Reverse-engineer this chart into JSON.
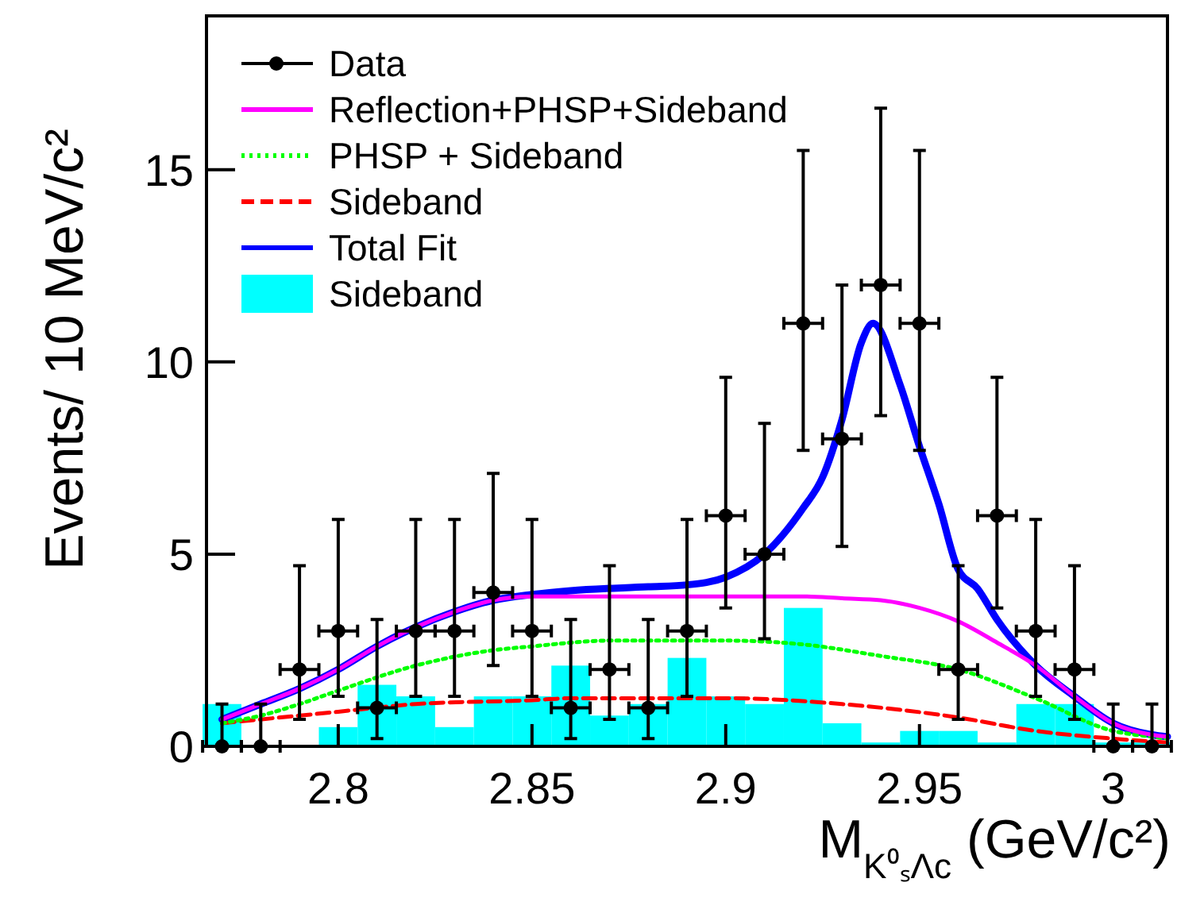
{
  "chart_data": {
    "type": "line",
    "xlabel": "M$_{K⁰ₛΛc}$ (GeV/c²)",
    "ylabel": "Events/ 10 MeV/c²",
    "xlim": [
      2.766,
      3.014
    ],
    "ylim": [
      0,
      19
    ],
    "xticks": [
      2.8,
      2.85,
      2.9,
      2.95,
      3
    ],
    "yticks": [
      0,
      5,
      10,
      15
    ],
    "legend": "top left",
    "grid": false,
    "series": [
      {
        "name": "Data",
        "type": "scatter",
        "marker": "circle",
        "color": "#000000",
        "x": [
          2.77,
          2.78,
          2.79,
          2.8,
          2.81,
          2.82,
          2.83,
          2.84,
          2.85,
          2.86,
          2.87,
          2.88,
          2.89,
          2.9,
          2.91,
          2.92,
          2.93,
          2.94,
          2.95,
          2.96,
          2.97,
          2.98,
          2.99,
          3.0,
          3.01
        ],
        "values": [
          0,
          0,
          2,
          3,
          1,
          3,
          3,
          4,
          3,
          1,
          2,
          1,
          3,
          6,
          5,
          11,
          8,
          12,
          11,
          2,
          6,
          3,
          2,
          0,
          0
        ],
        "errors": [
          [
            0,
            1.1
          ],
          [
            0,
            1.1
          ],
          [
            0.7,
            4.7
          ],
          [
            1.3,
            5.9
          ],
          [
            0.2,
            3.3
          ],
          [
            1.3,
            5.9
          ],
          [
            1.3,
            5.9
          ],
          [
            2.1,
            7.1
          ],
          [
            1.3,
            5.9
          ],
          [
            0.2,
            3.3
          ],
          [
            0.7,
            4.7
          ],
          [
            0.2,
            3.3
          ],
          [
            1.3,
            5.9
          ],
          [
            3.6,
            9.6
          ],
          [
            2.8,
            8.4
          ],
          [
            7.7,
            15.5
          ],
          [
            5.2,
            12.0
          ],
          [
            8.6,
            16.6
          ],
          [
            7.7,
            15.5
          ],
          [
            0.7,
            4.7
          ],
          [
            3.6,
            9.6
          ],
          [
            1.3,
            5.9
          ],
          [
            0.7,
            4.7
          ],
          [
            0,
            1.1
          ],
          [
            0,
            1.1
          ]
        ],
        "xerrors": [
          0.005,
          0.005,
          0.005,
          0.005,
          0.005,
          0.005,
          0.005,
          0.005,
          0.005,
          0.005,
          0.005,
          0.005,
          0.005,
          0.005,
          0.005,
          0.005,
          0.005,
          0.005,
          0.005,
          0.005,
          0.005,
          0.005,
          0.005,
          0.005,
          0.005
        ]
      },
      {
        "name": "Reflection+PHSP+Sideband",
        "line_style": "solid",
        "color": "#ff00ff",
        "x": [
          2.77,
          2.78,
          2.79,
          2.8,
          2.81,
          2.82,
          2.83,
          2.84,
          2.85,
          2.86,
          2.88,
          2.9,
          2.92,
          2.93,
          2.94,
          2.95,
          2.96,
          2.97,
          2.98,
          2.99,
          3.0,
          3.01,
          3.014
        ],
        "values": [
          0.7,
          1.1,
          1.5,
          2.0,
          2.6,
          3.1,
          3.5,
          3.8,
          3.9,
          3.9,
          3.9,
          3.9,
          3.9,
          3.85,
          3.8,
          3.6,
          3.25,
          2.7,
          2.1,
          1.3,
          0.6,
          0.3,
          0.25
        ]
      },
      {
        "name": "PHSP + Sideband",
        "line_style": "dotted",
        "color": "#00ff00",
        "x": [
          2.77,
          2.78,
          2.79,
          2.8,
          2.82,
          2.84,
          2.85,
          2.87,
          2.9,
          2.92,
          2.94,
          2.96,
          2.98,
          3.0,
          3.01,
          3.014
        ],
        "values": [
          0.6,
          0.8,
          1.1,
          1.45,
          2.1,
          2.5,
          2.6,
          2.75,
          2.75,
          2.65,
          2.35,
          2.0,
          1.25,
          0.4,
          0.25,
          0.2
        ]
      },
      {
        "name": "Sideband",
        "line_style": "dashed",
        "color": "#ff0000",
        "x": [
          2.77,
          2.8,
          2.82,
          2.85,
          2.86,
          2.9,
          2.93,
          2.96,
          2.98,
          3.0,
          3.014
        ],
        "values": [
          0.6,
          0.9,
          1.1,
          1.2,
          1.25,
          1.25,
          1.1,
          0.75,
          0.4,
          0.2,
          0.1
        ]
      },
      {
        "name": "Total Fit",
        "line_style": "solid",
        "color": "#0000ff",
        "x": [
          2.77,
          2.78,
          2.79,
          2.8,
          2.81,
          2.82,
          2.83,
          2.84,
          2.85,
          2.86,
          2.88,
          2.89,
          2.9,
          2.91,
          2.92,
          2.925,
          2.93,
          2.935,
          2.938,
          2.945,
          2.95,
          2.955,
          2.96,
          2.965,
          2.97,
          2.98,
          2.99,
          3.0,
          3.01,
          3.014
        ],
        "values": [
          0.7,
          1.1,
          1.5,
          2.0,
          2.6,
          3.1,
          3.5,
          3.8,
          3.95,
          4.05,
          4.15,
          4.2,
          4.4,
          5.0,
          6.2,
          7.0,
          8.5,
          10.5,
          11.0,
          9.4,
          7.8,
          6.3,
          4.6,
          4.1,
          3.3,
          2.1,
          1.3,
          0.6,
          0.3,
          0.25
        ]
      },
      {
        "name": "Sideband",
        "type": "histogram",
        "color": "#00ffff",
        "bins": [
          2.765,
          2.775,
          2.785,
          2.795,
          2.805,
          2.815,
          2.825,
          2.835,
          2.845,
          2.855,
          2.865,
          2.875,
          2.885,
          2.895,
          2.905,
          2.915,
          2.925,
          2.935,
          2.945,
          2.955,
          2.965,
          2.975,
          2.985,
          2.995,
          3.005,
          3.015
        ],
        "values": [
          1.1,
          0,
          0,
          0.5,
          1.6,
          1.3,
          0.5,
          1.3,
          1.3,
          2.1,
          0.8,
          1.1,
          2.3,
          1.3,
          1.1,
          3.6,
          0.6,
          0.1,
          0.4,
          0.4,
          0.1,
          1.1,
          1.1,
          0.1,
          0.1
        ]
      }
    ]
  }
}
